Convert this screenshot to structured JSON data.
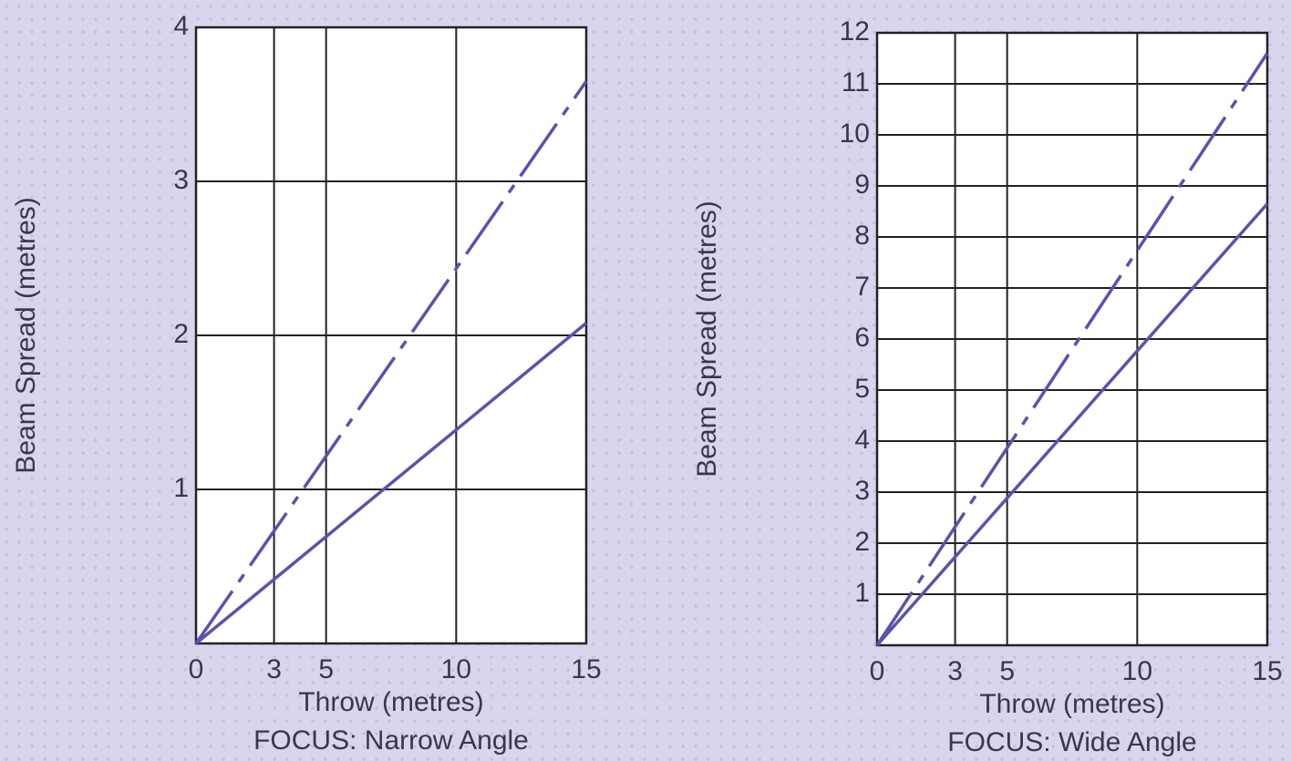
{
  "chart_data": [
    {
      "type": "line",
      "title": "FOCUS: Narrow Angle",
      "xlabel": "Throw (metres)",
      "ylabel": "Beam Spread (metres)",
      "x": [
        0,
        15
      ],
      "xlim": [
        0,
        15
      ],
      "xticks": [
        0,
        3,
        5,
        10,
        15
      ],
      "ylim": [
        0,
        4
      ],
      "yticks": [
        1,
        2,
        3,
        4
      ],
      "grid": true,
      "series": [
        {
          "color": "#5a52b0",
          "dash": "dash-dot",
          "values": [
            0,
            3.65
          ]
        },
        {
          "color": "#5a52b0",
          "dash": "solid",
          "values": [
            0,
            2.08
          ]
        }
      ]
    },
    {
      "type": "line",
      "title": "FOCUS: Wide Angle",
      "xlabel": "Throw (metres)",
      "ylabel": "Beam Spread (metres)",
      "x": [
        0,
        15
      ],
      "xlim": [
        0,
        15
      ],
      "xticks": [
        0,
        3,
        5,
        10,
        15
      ],
      "ylim": [
        0,
        12
      ],
      "yticks": [
        1,
        2,
        3,
        4,
        5,
        6,
        7,
        8,
        9,
        10,
        11,
        12
      ],
      "grid": true,
      "series": [
        {
          "color": "#5a52b0",
          "dash": "dash-dot",
          "values": [
            0,
            11.6
          ]
        },
        {
          "color": "#5a52b0",
          "dash": "solid",
          "values": [
            0,
            8.65
          ]
        }
      ]
    }
  ]
}
